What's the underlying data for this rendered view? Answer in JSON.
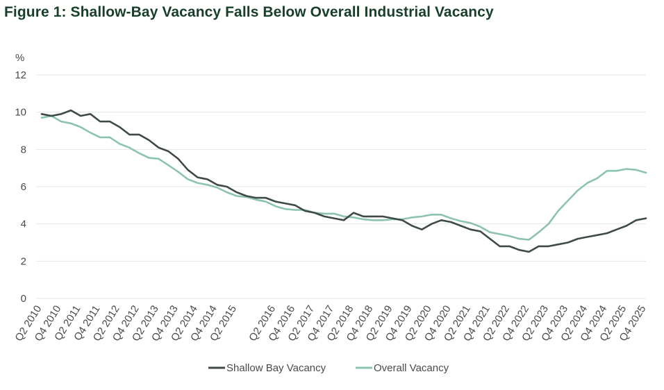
{
  "chart_data": {
    "type": "line",
    "title": "Figure 1: Shallow-Bay Vacancy Falls Below Overall Industrial Vacancy",
    "ylabel": "%",
    "ylim": [
      0,
      12
    ],
    "yticks": [
      "0",
      "2",
      "4",
      "6",
      "8",
      "10",
      "12"
    ],
    "grid": true,
    "legend_position": "bottom",
    "x": [
      "Q2 2010",
      "Q3 2010",
      "Q4 2010",
      "Q1 2011",
      "Q2 2011",
      "Q3 2011",
      "Q4 2011",
      "Q1 2012",
      "Q2 2012",
      "Q3 2012",
      "Q4 2012",
      "Q1 2013",
      "Q2 2013",
      "Q3 2013",
      "Q4 2013",
      "Q1 2014",
      "Q2 2014",
      "Q3 2014",
      "Q4 2014",
      "Q1 2015",
      "Q2 2015",
      "Q3 2015",
      "Q4 2015",
      "Q1 2016",
      "Q2 2016",
      "Q3 2016",
      "Q4 2016",
      "Q1 2017",
      "Q2 2017",
      "Q3 2017",
      "Q4 2017",
      "Q1 2018",
      "Q2 2018",
      "Q3 2018",
      "Q4 2018",
      "Q1 2019",
      "Q2 2019",
      "Q3 2019",
      "Q4 2019",
      "Q1 2020",
      "Q2 2020",
      "Q3 2020",
      "Q4 2020",
      "Q1 2021",
      "Q2 2021",
      "Q3 2021",
      "Q4 2021",
      "Q1 2022",
      "Q2 2022",
      "Q3 2022",
      "Q4 2022",
      "Q1 2023",
      "Q2 2023",
      "Q3 2023",
      "Q4 2023",
      "Q1 2024",
      "Q2 2024",
      "Q3 2024",
      "Q4 2024",
      "Q1 2025",
      "Q2 2025",
      "Q3 2025",
      "Q4 2025"
    ],
    "xtick_labels": [
      "Q2 2010",
      "Q4 2010",
      "Q2 2011",
      "Q4 2011",
      "Q2 2012",
      "Q4 2012",
      "Q2 2013",
      "Q4 2013",
      "Q2 2014",
      "Q4 2014",
      "Q2 2015",
      "Q2 2016",
      "Q4 2016",
      "Q2 2017",
      "Q4 2017",
      "Q2 2018",
      "Q4 2018",
      "Q2 2019",
      "Q4 2019",
      "Q2 2020",
      "Q4 2020",
      "Q2 2021",
      "Q4 2021",
      "Q2 2022",
      "Q4 2022",
      "Q2 2023",
      "Q4 2023",
      "Q2 2024",
      "Q4 2024",
      "Q2 2025",
      "Q4 2025"
    ],
    "series": [
      {
        "name": "Shallow Bay Vacancy",
        "color": "#3d4a45",
        "values": [
          9.9,
          9.8,
          9.9,
          10.1,
          9.8,
          9.9,
          9.5,
          9.5,
          9.2,
          8.8,
          8.8,
          8.5,
          8.1,
          7.9,
          7.5,
          6.9,
          6.5,
          6.4,
          6.1,
          6.0,
          5.7,
          5.5,
          5.4,
          5.4,
          5.2,
          5.1,
          5.0,
          4.7,
          4.6,
          4.4,
          4.3,
          4.2,
          4.6,
          4.4,
          4.4,
          4.4,
          4.3,
          4.2,
          3.9,
          3.7,
          4.0,
          4.2,
          4.1,
          3.9,
          3.7,
          3.6,
          3.2,
          2.8,
          2.8,
          2.6,
          2.5,
          2.8,
          2.8,
          2.9,
          3.0,
          3.2,
          3.3,
          3.4,
          3.5,
          3.7,
          3.9,
          4.2,
          4.3
        ]
      },
      {
        "name": "Overall Vacancy",
        "color": "#8cc3b0",
        "values": [
          9.7,
          9.8,
          9.5,
          9.4,
          9.2,
          8.9,
          8.65,
          8.65,
          8.3,
          8.1,
          7.8,
          7.55,
          7.5,
          7.15,
          6.8,
          6.4,
          6.2,
          6.1,
          5.95,
          5.7,
          5.5,
          5.45,
          5.3,
          5.2,
          4.95,
          4.8,
          4.75,
          4.75,
          4.6,
          4.55,
          4.55,
          4.4,
          4.35,
          4.25,
          4.2,
          4.2,
          4.25,
          4.25,
          4.35,
          4.4,
          4.5,
          4.5,
          4.3,
          4.15,
          4.05,
          3.85,
          3.55,
          3.45,
          3.35,
          3.2,
          3.15,
          3.55,
          4.0,
          4.7,
          5.25,
          5.8,
          6.2,
          6.45,
          6.85,
          6.85,
          6.95,
          6.9,
          6.75
        ]
      }
    ]
  }
}
